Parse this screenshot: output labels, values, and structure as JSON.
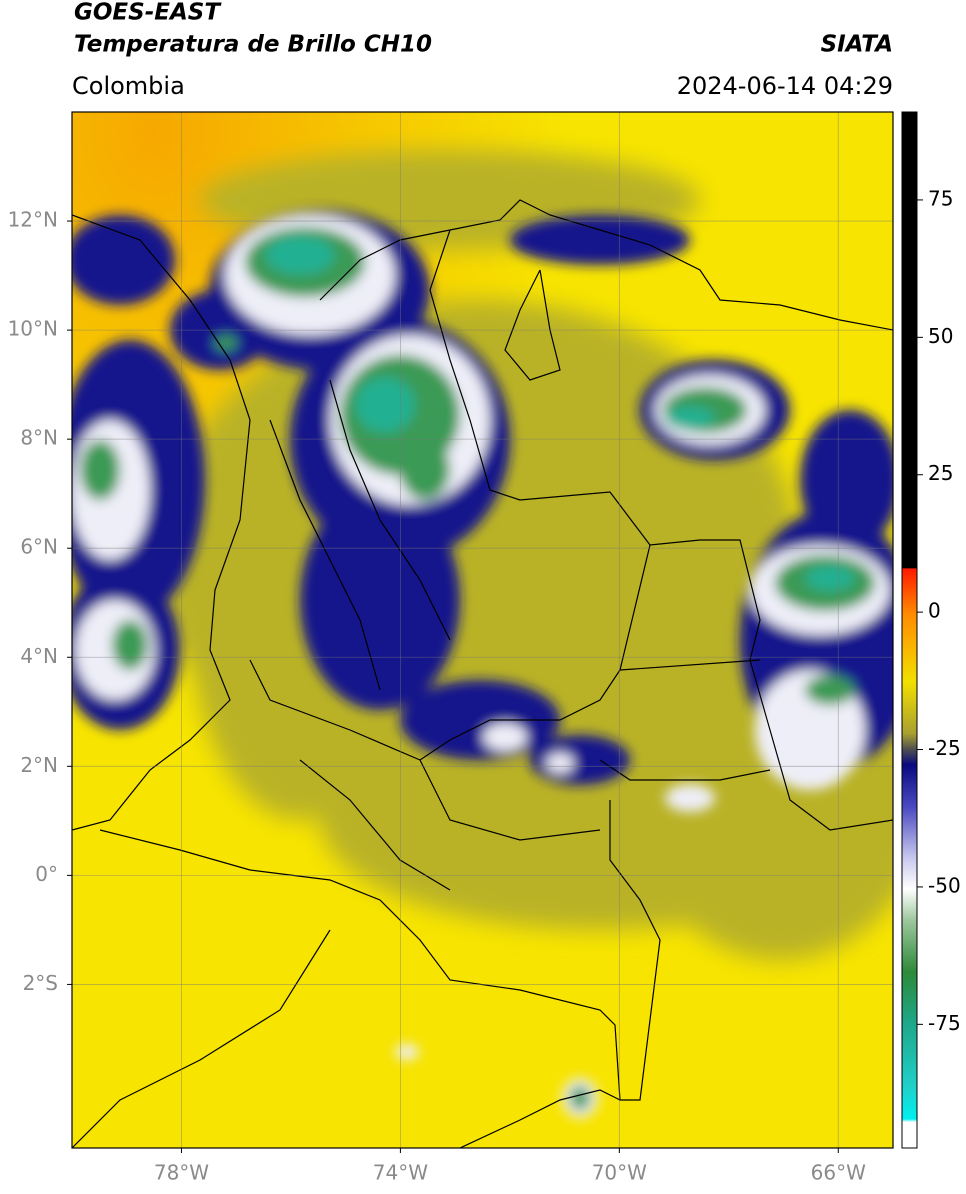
{
  "header": {
    "title_line1": "GOES-EAST",
    "title_line2": "Temperatura de Brillo CH10",
    "source": "SIATA",
    "region": "Colombia",
    "datetime": "2024-06-14 04:29"
  },
  "map": {
    "lonlim": [
      -80,
      -65
    ],
    "latlim": [
      -5,
      14
    ],
    "lat_ticks": [
      {
        "value": 12,
        "label": "12°N"
      },
      {
        "value": 10,
        "label": "10°N"
      },
      {
        "value": 8,
        "label": "8°N"
      },
      {
        "value": 6,
        "label": "6°N"
      },
      {
        "value": 4,
        "label": "4°N"
      },
      {
        "value": 2,
        "label": "2°N"
      },
      {
        "value": 0,
        "label": "0°"
      },
      {
        "value": -2,
        "label": "2°S"
      }
    ],
    "lon_ticks": [
      {
        "value": -78,
        "label": "78°W"
      },
      {
        "value": -74,
        "label": "74°W"
      },
      {
        "value": -70,
        "label": "70°W"
      },
      {
        "value": -66,
        "label": "66°W"
      }
    ],
    "grid": true
  },
  "colorbar": {
    "clim": [
      -97.5,
      91
    ],
    "ticks": [
      75,
      50,
      25,
      0,
      -25,
      -50,
      -75
    ]
  }
}
